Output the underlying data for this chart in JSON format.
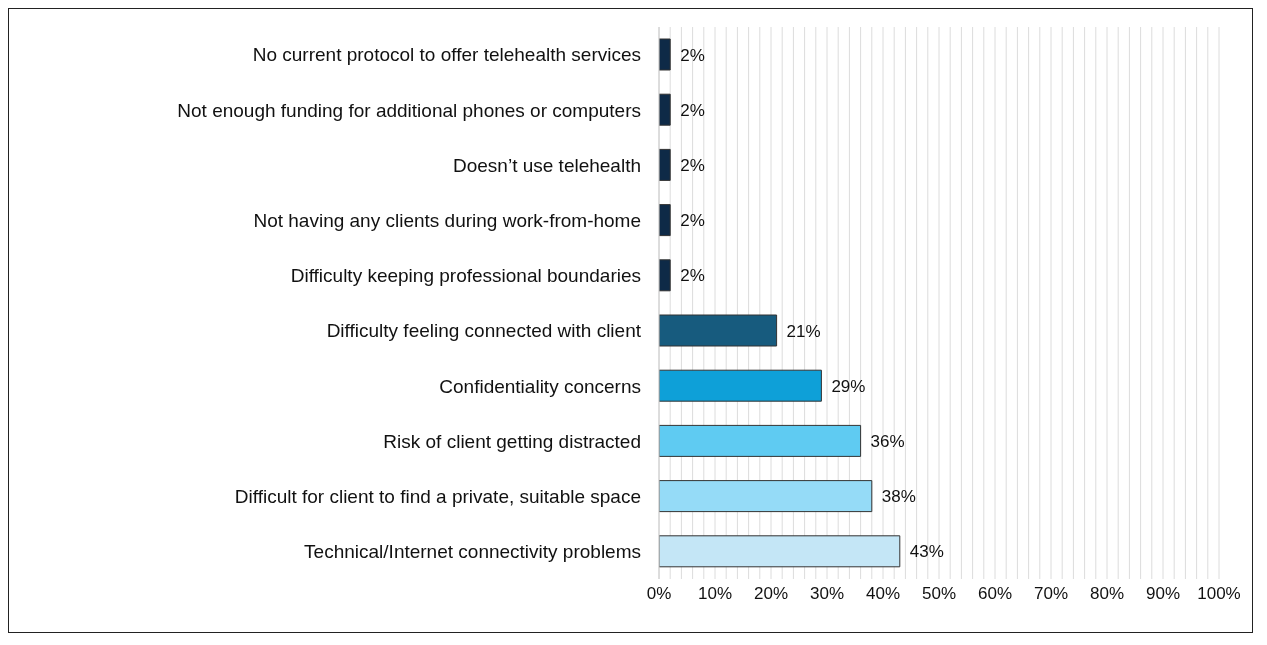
{
  "chart_data": {
    "type": "bar",
    "orientation": "horizontal",
    "categories": [
      "No current protocol to offer telehealth services",
      "Not enough funding for additional phones or computers",
      "Doesn’t use telehealth",
      "Not having any clients during work-from-home",
      "Difficulty keeping professional boundaries",
      "Difficulty feeling connected with client",
      "Confidentiality concerns",
      "Risk of client getting distracted",
      "Difficult for client to find a private, suitable space",
      "Technical/Internet connectivity problems"
    ],
    "values": [
      2,
      2,
      2,
      2,
      2,
      21,
      29,
      36,
      38,
      43
    ],
    "value_labels": [
      "2%",
      "2%",
      "2%",
      "2%",
      "2%",
      "21%",
      "29%",
      "36%",
      "38%",
      "43%"
    ],
    "colors": [
      "#0e2a47",
      "#0e2a47",
      "#0e2a47",
      "#0e2a47",
      "#0e2a47",
      "#175b7e",
      "#0ea0d8",
      "#5fcbf2",
      "#95dbf7",
      "#c4e6f6"
    ],
    "xlim": [
      0,
      100
    ],
    "xticks": [
      {
        "value": 0,
        "label": "0%"
      },
      {
        "value": 2,
        "label": null
      },
      {
        "value": 4,
        "label": null
      },
      {
        "value": 6,
        "label": null
      },
      {
        "value": 8,
        "label": null
      },
      {
        "value": 10,
        "label": "10%"
      },
      {
        "value": 12,
        "label": null
      },
      {
        "value": 14,
        "label": null
      },
      {
        "value": 16,
        "label": null
      },
      {
        "value": 18,
        "label": null
      },
      {
        "value": 20,
        "label": "20%"
      },
      {
        "value": 22,
        "label": null
      },
      {
        "value": 24,
        "label": null
      },
      {
        "value": 26,
        "label": null
      },
      {
        "value": 28,
        "label": null
      },
      {
        "value": 30,
        "label": "30%"
      },
      {
        "value": 32,
        "label": null
      },
      {
        "value": 34,
        "label": null
      },
      {
        "value": 36,
        "label": null
      },
      {
        "value": 38,
        "label": null
      },
      {
        "value": 40,
        "label": "40%"
      },
      {
        "value": 42,
        "label": null
      },
      {
        "value": 44,
        "label": null
      },
      {
        "value": 46,
        "label": null
      },
      {
        "value": 48,
        "label": null
      },
      {
        "value": 50,
        "label": "50%"
      },
      {
        "value": 52,
        "label": null
      },
      {
        "value": 54,
        "label": null
      },
      {
        "value": 56,
        "label": null
      },
      {
        "value": 58,
        "label": null
      },
      {
        "value": 60,
        "label": "60%"
      },
      {
        "value": 62,
        "label": null
      },
      {
        "value": 64,
        "label": null
      },
      {
        "value": 66,
        "label": null
      },
      {
        "value": 68,
        "label": null
      },
      {
        "value": 70,
        "label": "70%"
      },
      {
        "value": 72,
        "label": null
      },
      {
        "value": 74,
        "label": null
      },
      {
        "value": 76,
        "label": null
      },
      {
        "value": 78,
        "label": null
      },
      {
        "value": 80,
        "label": "80%"
      },
      {
        "value": 82,
        "label": null
      },
      {
        "value": 84,
        "label": null
      },
      {
        "value": 86,
        "label": null
      },
      {
        "value": 88,
        "label": null
      },
      {
        "value": 90,
        "label": "90%"
      },
      {
        "value": 92,
        "label": null
      },
      {
        "value": 94,
        "label": null
      },
      {
        "value": 96,
        "label": null
      },
      {
        "value": 98,
        "label": null
      },
      {
        "value": 100,
        "label": "100%"
      }
    ],
    "grid": "x",
    "legend": false
  }
}
